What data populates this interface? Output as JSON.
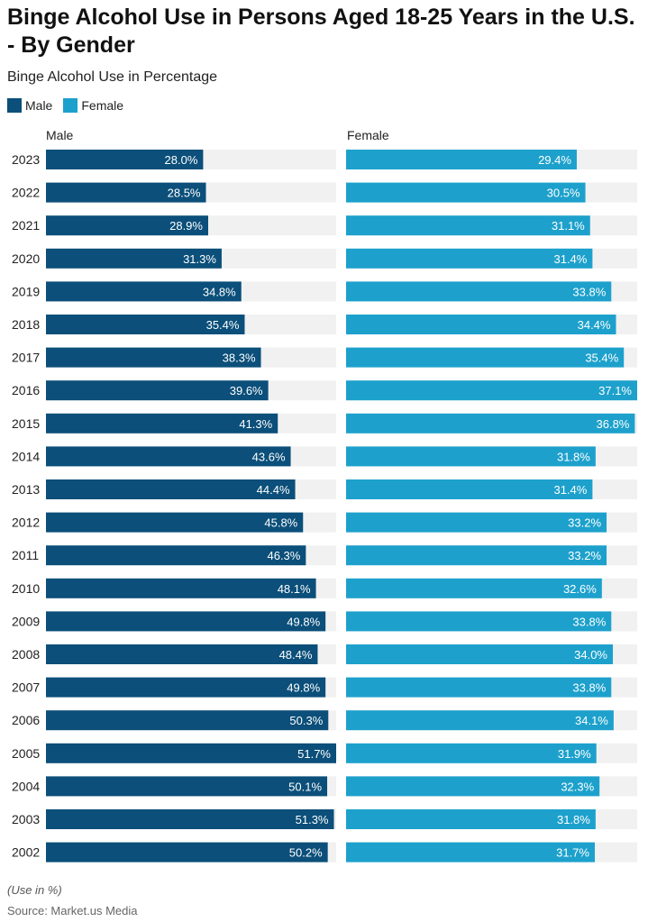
{
  "colors": {
    "male": "#0b4f7a",
    "female": "#1da1cc",
    "track": "#f1f1f1"
  },
  "legend": {
    "male_label": "Male",
    "female_label": "Female"
  },
  "panels": {
    "male_header": "Male",
    "female_header": "Female"
  },
  "footnote": "(Use in %)",
  "source": "Source: Market.us Media",
  "chart_data": {
    "type": "bar",
    "orientation": "horizontal",
    "title": "Binge Alcohol Use in Persons Aged 18-25 Years in the U.S. - By Gender",
    "subtitle": "Binge Alcohol Use in Percentage",
    "categories": [
      "2023",
      "2022",
      "2021",
      "2020",
      "2019",
      "2018",
      "2017",
      "2016",
      "2015",
      "2014",
      "2013",
      "2012",
      "2011",
      "2010",
      "2009",
      "2008",
      "2007",
      "2006",
      "2005",
      "2004",
      "2003",
      "2002"
    ],
    "series": [
      {
        "name": "Male",
        "values": [
          28.0,
          28.5,
          28.9,
          31.3,
          34.8,
          35.4,
          38.3,
          39.6,
          41.3,
          43.6,
          44.4,
          45.8,
          46.3,
          48.1,
          49.8,
          48.4,
          49.8,
          50.3,
          51.7,
          50.1,
          51.3,
          50.2
        ],
        "labels": [
          "28.0%",
          "28.5%",
          "28.9%",
          "31.3%",
          "34.8%",
          "35.4%",
          "38.3%",
          "39.6%",
          "41.3%",
          "43.6%",
          "44.4%",
          "45.8%",
          "46.3%",
          "48.1%",
          "49.8%",
          "48.4%",
          "49.8%",
          "50.3%",
          "51.7%",
          "50.1%",
          "51.3%",
          "50.2%"
        ],
        "xlim": [
          0,
          51.7
        ]
      },
      {
        "name": "Female",
        "values": [
          29.4,
          30.5,
          31.1,
          31.4,
          33.8,
          34.4,
          35.4,
          37.1,
          36.8,
          31.8,
          31.4,
          33.2,
          33.2,
          32.6,
          33.8,
          34.0,
          33.8,
          34.1,
          31.9,
          32.3,
          31.8,
          31.7
        ],
        "labels": [
          "29.4%",
          "30.5%",
          "31.1%",
          "31.4%",
          "33.8%",
          "34.4%",
          "35.4%",
          "37.1%",
          "36.8%",
          "31.8%",
          "31.4%",
          "33.2%",
          "33.2%",
          "32.6%",
          "33.8%",
          "34.0%",
          "33.8%",
          "34.1%",
          "31.9%",
          "32.3%",
          "31.8%",
          "31.7%"
        ],
        "xlim": [
          0,
          37.1
        ]
      }
    ],
    "unit": "%"
  }
}
